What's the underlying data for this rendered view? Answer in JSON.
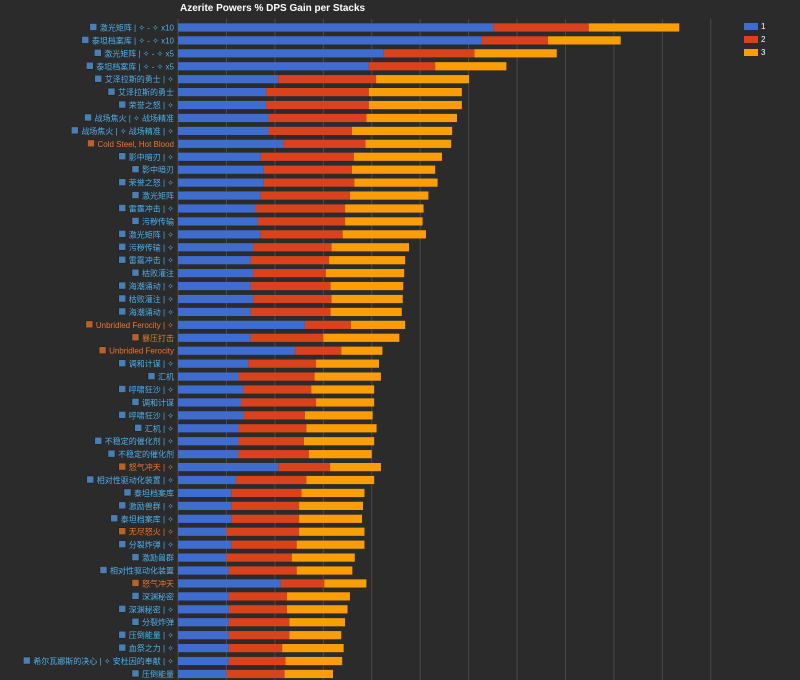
{
  "chart_data": {
    "type": "bar",
    "orientation": "horizontal",
    "stacked": true,
    "title": "Azerite Powers % DPS Gain per Stacks",
    "xlabel": "",
    "ylabel": "",
    "grid": true,
    "legend_position": "top-right",
    "series_colors": [
      "#3f6ccf",
      "#d9421b",
      "#fb9d06"
    ],
    "text_colors": {
      "blue": "#4fb0ef",
      "orange": "#f0742a"
    },
    "categories": [
      {
        "label": "激光矩阵 | ✧ - ✧ x10",
        "color": "blue",
        "icon": "laser-matrix-icon"
      },
      {
        "label": "泰坦档案库 | ✧ - ✧ x10",
        "color": "blue",
        "icon": "titan-archive-icon"
      },
      {
        "label": "激光矩阵 | ✧ - ✧ x5",
        "color": "blue",
        "icon": "laser-matrix-icon"
      },
      {
        "label": "泰坦档案库 | ✧ - ✧ x5",
        "color": "blue",
        "icon": "titan-archive-icon"
      },
      {
        "label": "艾泽拉斯的勇士 | ✧",
        "color": "blue",
        "icon": "champion-icon"
      },
      {
        "label": "艾泽拉斯的勇士",
        "color": "blue",
        "icon": "champion-icon"
      },
      {
        "label": "荣誉之怒 | ✧",
        "color": "blue",
        "icon": "honor-icon"
      },
      {
        "label": "战场焦火 | ✧ 战场精准",
        "color": "blue",
        "icon": "battlefield-icon"
      },
      {
        "label": "战场焦火 | ✧ 战场精准 | ✧",
        "color": "blue",
        "icon": "battlefield-icon"
      },
      {
        "label": "Cold Steel, Hot Blood",
        "color": "orange",
        "icon": "cold-steel-icon"
      },
      {
        "label": "影中暗刃 | ✧",
        "color": "blue",
        "icon": "blade-icon"
      },
      {
        "label": "影中暗刃",
        "color": "blue",
        "icon": "blade-icon"
      },
      {
        "label": "荣誉之怒 | ✧",
        "color": "blue",
        "icon": "honor-icon"
      },
      {
        "label": "激光矩阵",
        "color": "blue",
        "icon": "laser-matrix-icon"
      },
      {
        "label": "雷霆冲击 | ✧",
        "color": "blue",
        "icon": "thunder-icon"
      },
      {
        "label": "污秽传输",
        "color": "blue",
        "icon": "filth-icon"
      },
      {
        "label": "激光矩阵 | ✧",
        "color": "blue",
        "icon": "laser-matrix-icon"
      },
      {
        "label": "污秽传输 | ✧",
        "color": "blue",
        "icon": "filth-icon"
      },
      {
        "label": "雷霆冲击 | ✧",
        "color": "blue",
        "icon": "thunder-icon"
      },
      {
        "label": "枯败灌注",
        "color": "blue",
        "icon": "blight-icon"
      },
      {
        "label": "海潮涌动 | ✧",
        "color": "blue",
        "icon": "tide-icon"
      },
      {
        "label": "枯败灌注 | ✧",
        "color": "blue",
        "icon": "blight-icon"
      },
      {
        "label": "海潮涌动 | ✧",
        "color": "blue",
        "icon": "tide-icon"
      },
      {
        "label": "Unbridled Ferocity | ✧",
        "color": "orange",
        "icon": "ferocity-icon"
      },
      {
        "label": "暴压打击",
        "color": "orange",
        "icon": "strike-icon"
      },
      {
        "label": "Unbridled Ferocity",
        "color": "orange",
        "icon": "ferocity-icon"
      },
      {
        "label": "调和计谋 | ✧",
        "color": "blue",
        "icon": "scheme-icon"
      },
      {
        "label": "汇机",
        "color": "blue",
        "icon": "gear-icon"
      },
      {
        "label": "呼啸狂沙 | ✧",
        "color": "blue",
        "icon": "sand-icon"
      },
      {
        "label": "调和计谋",
        "color": "blue",
        "icon": "scheme-icon"
      },
      {
        "label": "呼啸狂沙 | ✧",
        "color": "blue",
        "icon": "sand-icon"
      },
      {
        "label": "汇机 | ✧",
        "color": "blue",
        "icon": "gear-icon"
      },
      {
        "label": "不稳定的催化剂 | ✧",
        "color": "blue",
        "icon": "catalyst-icon"
      },
      {
        "label": "不稳定的催化剂",
        "color": "blue",
        "icon": "catalyst-icon"
      },
      {
        "label": "怒气冲天 | ✧",
        "color": "orange",
        "icon": "rage-icon"
      },
      {
        "label": "相对性驱动化装置 | ✧",
        "color": "blue",
        "icon": "relational-icon"
      },
      {
        "label": "泰坦档案库",
        "color": "blue",
        "icon": "titan-archive-icon"
      },
      {
        "label": "激励兽群 | ✧",
        "color": "blue",
        "icon": "herd-icon"
      },
      {
        "label": "泰坦档案库 | ✧",
        "color": "blue",
        "icon": "titan-archive-icon"
      },
      {
        "label": "无尽怒火 | ✧",
        "color": "orange",
        "icon": "fury-icon"
      },
      {
        "label": "分裂炸弹 | ✧",
        "color": "blue",
        "icon": "bomb-icon"
      },
      {
        "label": "激励兽群",
        "color": "blue",
        "icon": "herd-icon"
      },
      {
        "label": "相对性驱动化装置",
        "color": "blue",
        "icon": "relational-icon"
      },
      {
        "label": "怒气冲天",
        "color": "orange",
        "icon": "rage-icon"
      },
      {
        "label": "深渊秘密",
        "color": "blue",
        "icon": "abyss-icon"
      },
      {
        "label": "深渊秘密 | ✧",
        "color": "blue",
        "icon": "abyss-icon"
      },
      {
        "label": "分裂炸弹",
        "color": "blue",
        "icon": "bomb-icon"
      },
      {
        "label": "压倒能量 | ✧",
        "color": "blue",
        "icon": "power-icon"
      },
      {
        "label": "血祭之力 | ✧",
        "color": "blue",
        "icon": "blood-icon"
      },
      {
        "label": "希尔瓦娜斯的决心 | ✧ 安杜因的奉献 | ✧",
        "color": "blue",
        "icon": "resolve-icon"
      },
      {
        "label": "压倒能量",
        "color": "blue",
        "icon": "power-icon"
      }
    ],
    "series": [
      {
        "name": "1",
        "values": [
          6.51,
          6.27,
          4.25,
          3.94,
          2.07,
          1.82,
          1.82,
          1.87,
          1.87,
          2.17,
          1.71,
          1.77,
          1.77,
          1.7,
          1.6,
          1.65,
          1.7,
          1.55,
          1.5,
          1.55,
          1.5,
          1.55,
          1.5,
          2.62,
          1.5,
          2.42,
          1.45,
          1.25,
          1.35,
          1.3,
          1.35,
          1.25,
          1.25,
          1.25,
          2.07,
          1.2,
          1.1,
          1.1,
          1.1,
          1.0,
          1.1,
          1.0,
          1.05,
          2.12,
          1.05,
          1.05,
          1.05,
          1.05,
          1.05,
          1.05,
          1.0
        ]
      },
      {
        "name": "2",
        "values": [
          1.97,
          1.37,
          1.87,
          1.37,
          2.02,
          2.12,
          2.12,
          2.02,
          1.72,
          1.7,
          1.92,
          1.82,
          1.87,
          1.85,
          1.85,
          1.8,
          1.7,
          1.62,
          1.62,
          1.5,
          1.65,
          1.62,
          1.65,
          0.95,
          1.5,
          0.95,
          1.4,
          1.57,
          1.4,
          1.55,
          1.27,
          1.4,
          1.35,
          1.45,
          1.07,
          1.45,
          1.45,
          1.4,
          1.4,
          1.5,
          1.35,
          1.35,
          1.4,
          0.9,
          1.2,
          1.2,
          1.25,
          1.25,
          1.1,
          1.17,
          1.2
        ]
      },
      {
        "name": "3",
        "values": [
          1.87,
          1.5,
          1.7,
          1.47,
          1.92,
          1.92,
          1.92,
          1.87,
          2.07,
          1.77,
          1.82,
          1.72,
          1.72,
          1.62,
          1.62,
          1.6,
          1.72,
          1.6,
          1.57,
          1.62,
          1.5,
          1.47,
          1.47,
          1.12,
          1.57,
          0.85,
          1.3,
          1.37,
          1.3,
          1.2,
          1.4,
          1.45,
          1.45,
          1.3,
          1.05,
          1.4,
          1.3,
          1.32,
          1.3,
          1.35,
          1.4,
          1.3,
          1.15,
          0.87,
          1.3,
          1.25,
          1.15,
          1.07,
          1.27,
          1.17,
          1.0
        ]
      }
    ],
    "xlim": [
      0,
      11.5
    ]
  }
}
